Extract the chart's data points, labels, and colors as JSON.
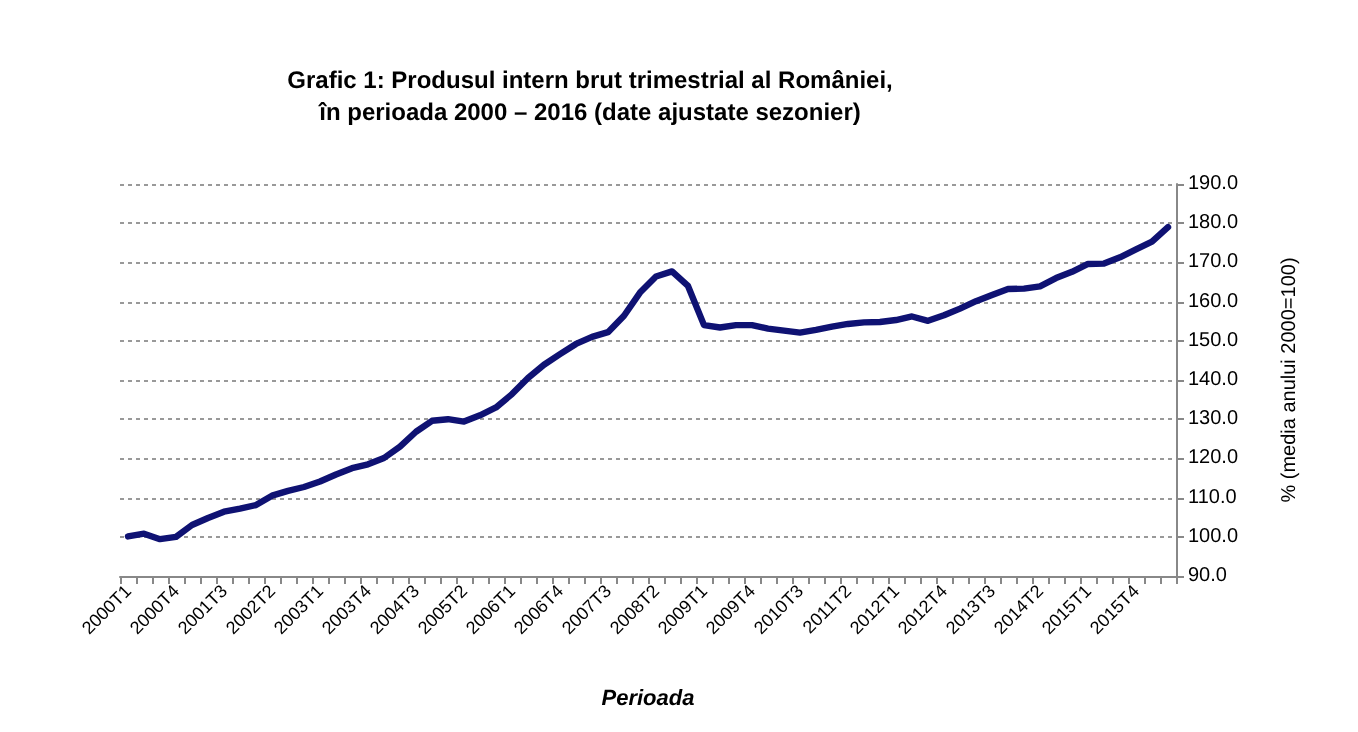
{
  "chart_data": {
    "type": "line",
    "title": "Grafic 1: Produsul intern brut trimestrial al României,\nîn perioada 2000 – 2016 (date ajustate sezonier)",
    "xlabel": "Perioada",
    "ylabel": "% (media anului 2000=100)",
    "categories": [
      "2000T1",
      null,
      null,
      "2000T4",
      null,
      null,
      "2001T3",
      null,
      null,
      "2002T2",
      null,
      null,
      "2003T1",
      null,
      null,
      "2003T4",
      null,
      null,
      "2004T3",
      null,
      null,
      "2005T2",
      null,
      null,
      "2006T1",
      null,
      null,
      "2006T4",
      null,
      null,
      "2007T3",
      null,
      null,
      "2008T2",
      null,
      null,
      "2009T1",
      null,
      null,
      "2009T4",
      null,
      null,
      "2010T3",
      null,
      null,
      "2011T2",
      null,
      null,
      "2012T1",
      null,
      null,
      "2012T4",
      null,
      null,
      "2013T3",
      null,
      null,
      "2014T2",
      null,
      null,
      "2015T1",
      null,
      null,
      "2015T4",
      null,
      null
    ],
    "series": [
      {
        "color": "#0f1273",
        "values": [
          100.1,
          100.8,
          99.4,
          100,
          103,
          104.8,
          106.4,
          107.2,
          108.1,
          110.5,
          111.7,
          112.7,
          114.1,
          115.9,
          117.5,
          118.5,
          120.1,
          123,
          126.8,
          129.6,
          130,
          129.4,
          131,
          133,
          136.4,
          140.5,
          143.9,
          146.6,
          149.2,
          151,
          152.2,
          156.4,
          162.3,
          166.4,
          167.7,
          164,
          154,
          153.4,
          154,
          154,
          153.1,
          152.6,
          152.1,
          152.8,
          153.6,
          154.3,
          154.7,
          154.8,
          155.3,
          156.2,
          155.1,
          156.5,
          158.2,
          160.1,
          161.7,
          163.2,
          163.3,
          163.9,
          166,
          167.6,
          169.6,
          169.7,
          171.3,
          173.3,
          175.3,
          179
        ]
      }
    ],
    "ylim": [
      90,
      190
    ],
    "yticks": [
      {
        "value": 90,
        "label": "90.0"
      },
      {
        "value": 100,
        "label": "100.0"
      },
      {
        "value": 110,
        "label": "110.0"
      },
      {
        "value": 120,
        "label": "120.0"
      },
      {
        "value": 130,
        "label": "130.0"
      },
      {
        "value": 140,
        "label": "140.0"
      },
      {
        "value": 150,
        "label": "150.0"
      },
      {
        "value": 160,
        "label": "160.0"
      },
      {
        "value": 170,
        "label": "170.0"
      },
      {
        "value": 180,
        "label": "180.0"
      },
      {
        "value": 190,
        "label": "190.0"
      }
    ],
    "grid": "y",
    "marker": "none",
    "line_style": "solid"
  }
}
